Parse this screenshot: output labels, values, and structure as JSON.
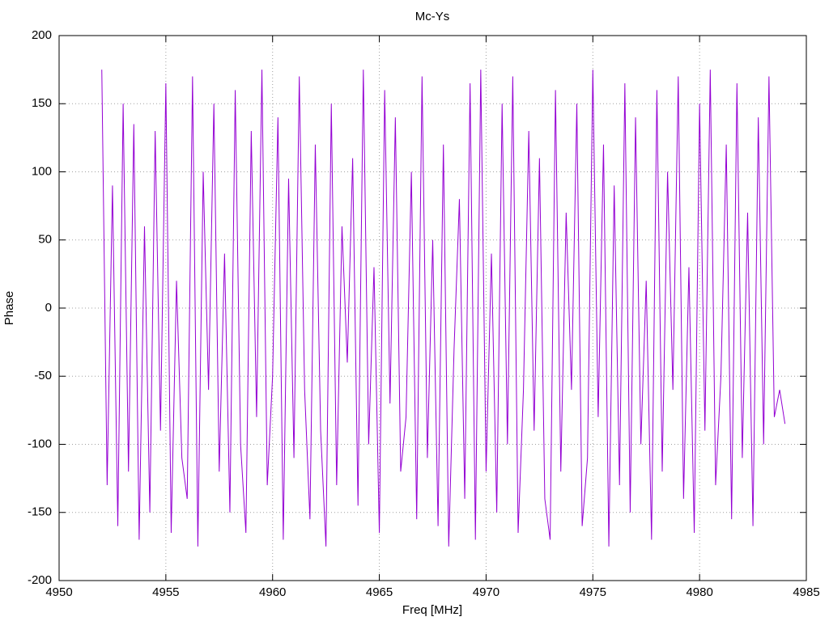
{
  "chart_data": {
    "type": "line",
    "title": "Mc-Ys",
    "x_label": "Freq [MHz]",
    "y_label": "Phase",
    "xlim": [
      4950,
      4985
    ],
    "xticks": [
      4950,
      4955,
      4960,
      4965,
      4970,
      4975,
      4980,
      4985
    ],
    "ylim": [
      -200,
      200
    ],
    "yticks": [
      -200,
      -150,
      -100,
      -50,
      0,
      50,
      100,
      150,
      200
    ],
    "grid": true,
    "x": [
      4952,
      4952.25,
      4952.5,
      4952.75,
      4953,
      4953.25,
      4953.5,
      4953.75,
      4954,
      4954.25,
      4954.5,
      4954.75,
      4955,
      4955.25,
      4955.5,
      4955.75,
      4956,
      4956.25,
      4956.5,
      4956.75,
      4957,
      4957.25,
      4957.5,
      4957.75,
      4958,
      4958.25,
      4958.5,
      4958.75,
      4959,
      4959.25,
      4959.5,
      4959.75,
      4960,
      4960.25,
      4960.5,
      4960.75,
      4961,
      4961.25,
      4961.5,
      4961.75,
      4962,
      4962.25,
      4962.5,
      4962.75,
      4963,
      4963.25,
      4963.5,
      4963.75,
      4964,
      4964.25,
      4964.5,
      4964.75,
      4965,
      4965.25,
      4965.5,
      4965.75,
      4966,
      4966.25,
      4966.5,
      4966.75,
      4967,
      4967.25,
      4967.5,
      4967.75,
      4968,
      4968.25,
      4968.5,
      4968.75,
      4969,
      4969.25,
      4969.5,
      4969.75,
      4970,
      4970.25,
      4970.5,
      4970.75,
      4971,
      4971.25,
      4971.5,
      4971.75,
      4972,
      4972.25,
      4972.5,
      4972.75,
      4973,
      4973.25,
      4973.5,
      4973.75,
      4974,
      4974.25,
      4974.5,
      4974.75,
      4975,
      4975.25,
      4975.5,
      4975.75,
      4976,
      4976.25,
      4976.5,
      4976.75,
      4977,
      4977.25,
      4977.5,
      4977.75,
      4978,
      4978.25,
      4978.5,
      4978.75,
      4979,
      4979.25,
      4979.5,
      4979.75,
      4980,
      4980.25,
      4980.5,
      4980.75,
      4981,
      4981.25,
      4981.5,
      4981.75,
      4982,
      4982.25,
      4982.5,
      4982.75,
      4983,
      4983.25,
      4983.5,
      4983.75,
      4984
    ],
    "series": [
      {
        "name": "Mc-Ys",
        "color": "#9400d3",
        "values": [
          175,
          -130,
          90,
          -160,
          150,
          -120,
          135,
          -170,
          60,
          -150,
          130,
          -90,
          165,
          -165,
          20,
          -110,
          -140,
          170,
          -175,
          100,
          -60,
          150,
          -120,
          40,
          -150,
          160,
          -100,
          -165,
          130,
          -80,
          175,
          -130,
          -50,
          140,
          -170,
          95,
          -110,
          170,
          -60,
          -155,
          120,
          -90,
          -175,
          150,
          -130,
          60,
          -40,
          110,
          -145,
          175,
          -100,
          30,
          -165,
          160,
          -70,
          140,
          -120,
          -80,
          100,
          -155,
          170,
          -110,
          50,
          -160,
          120,
          -175,
          -30,
          80,
          -140,
          165,
          -170,
          175,
          -120,
          40,
          -150,
          150,
          -100,
          170,
          -165,
          -60,
          130,
          -90,
          110,
          -140,
          -170,
          160,
          -120,
          70,
          -60,
          150,
          -160,
          -110,
          175,
          -80,
          120,
          -175,
          90,
          -130,
          165,
          -150,
          140,
          -100,
          20,
          -170,
          160,
          -120,
          100,
          -60,
          170,
          -140,
          30,
          -165,
          150,
          -90,
          175,
          -130,
          -50,
          120,
          -155,
          165,
          -110,
          70,
          -160,
          140,
          -100,
          170,
          -80,
          -60,
          -85
        ]
      }
    ]
  }
}
